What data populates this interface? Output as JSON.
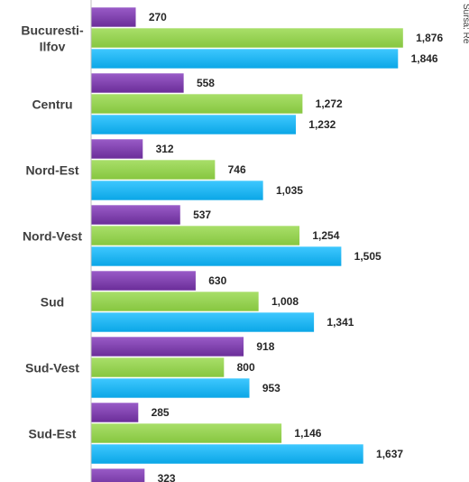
{
  "chart_data": {
    "type": "bar",
    "orientation": "horizontal",
    "categories": [
      [
        "Bucuresti-",
        "Ilfov"
      ],
      [
        "Centru"
      ],
      [
        "Nord-Est"
      ],
      [
        "Nord-Vest"
      ],
      [
        "Sud"
      ],
      [
        "Sud-Vest"
      ],
      [
        "Sud-Est"
      ],
      [
        ""
      ]
    ],
    "series": [
      {
        "values": [
          270,
          558,
          312,
          537,
          630,
          918,
          285,
          323
        ],
        "color": "#7030a0"
      },
      {
        "values": [
          1876,
          1272,
          746,
          1254,
          1008,
          800,
          1146,
          null
        ],
        "color": "#92d050"
      },
      {
        "values": [
          1846,
          1232,
          1035,
          1505,
          1341,
          953,
          1637,
          null
        ],
        "color": "#00b0f0"
      }
    ],
    "value_labels": [
      [
        "270",
        "1,876",
        "1,846"
      ],
      [
        "558",
        "1,272",
        "1,232"
      ],
      [
        "312",
        "746",
        "1,035"
      ],
      [
        "537",
        "1,254",
        "1,505"
      ],
      [
        "630",
        "1,008",
        "1,341"
      ],
      [
        "918",
        "800",
        "953"
      ],
      [
        "285",
        "1,146",
        "1,637"
      ],
      [
        "323",
        "",
        ""
      ]
    ],
    "xlim": [
      0,
      2000
    ],
    "grid": false,
    "source_note": "Sursa: Re"
  }
}
